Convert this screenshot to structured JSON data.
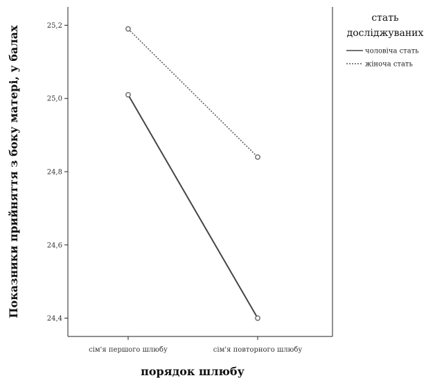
{
  "chart_data": {
    "type": "line",
    "xlabel": "порядок шлюбу",
    "ylabel": "Показники прийняття з боку матері, у балах",
    "categories": [
      "сім'я першого шлюбу",
      "сім'я повторного шлюбу"
    ],
    "ylim": [
      24.35,
      25.25
    ],
    "yticks": [
      24.4,
      24.6,
      24.8,
      25.0,
      25.2
    ],
    "ytick_labels": [
      "24,4",
      "24,6",
      "24,8",
      "25,0",
      "25,2"
    ],
    "grid": false,
    "legend": {
      "title_line1": "стать",
      "title_line2": "досліджуваних",
      "placement": "right"
    },
    "series": [
      {
        "name": "чоловіча стать",
        "values": [
          25.01,
          24.4
        ],
        "style": "solid",
        "color": "#444444"
      },
      {
        "name": "жіноча стать",
        "values": [
          25.19,
          24.84
        ],
        "style": "dotted",
        "color": "#555555"
      }
    ]
  }
}
